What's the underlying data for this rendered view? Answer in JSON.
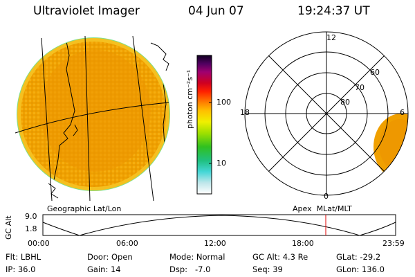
{
  "header": {
    "title": "Ultraviolet Imager",
    "date": "04 Jun 07",
    "time": "19:24:37 UT"
  },
  "left_panel": {
    "caption": "Geographic Lat/Lon"
  },
  "right_panel": {
    "caption": "Apex  MLat/MLT",
    "hour_labels": {
      "top": "12",
      "left": "18",
      "right": "6",
      "bottom": "0"
    },
    "lat_labels": [
      "60",
      "70",
      "80"
    ]
  },
  "colorbar": {
    "unit_label": "photon cm⁻²s⁻¹",
    "ticks": [
      "100",
      "10"
    ],
    "scale": "log"
  },
  "altitude_plot": {
    "ylabel": "GC Alt",
    "y_ticks": [
      "9.0",
      "1.8"
    ],
    "x_ticks": [
      "00:00",
      "06:00",
      "12:00",
      "18:00",
      "23:59"
    ],
    "current_time_marker": "19:24"
  },
  "info": {
    "filter": "Flt: LBHL",
    "ip": "IP: 36.0",
    "door": "Door: Open",
    "gain": "Gain: 14",
    "mode": "Mode: Normal",
    "dsp": "Dsp:   -7.0",
    "gc_alt": "GC Alt: 4.3 Re",
    "seq": "Seq: 39",
    "glat": "GLat: -29.2",
    "glon": "GLon: 136.0"
  }
}
